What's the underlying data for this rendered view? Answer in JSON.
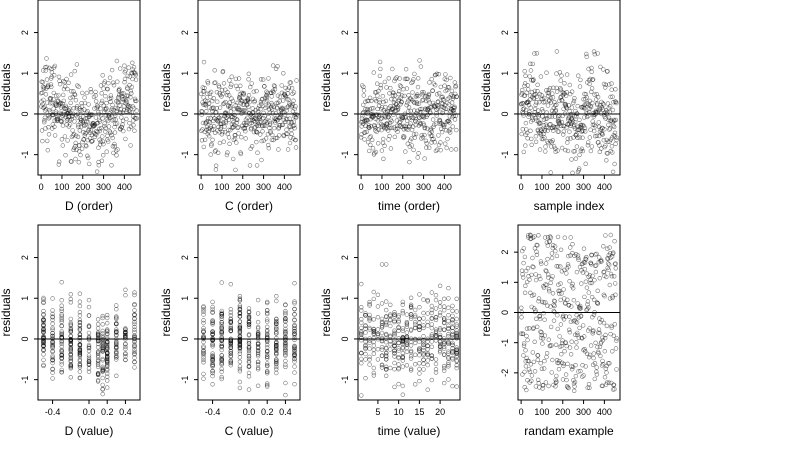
{
  "chart_data": [
    {
      "type": "scatter",
      "xlabel": "D (order)",
      "ylabel": "residuals",
      "xlim": [
        -15,
        475
      ],
      "ylim": [
        -1.5,
        2.8
      ],
      "xticks": [
        0,
        100,
        200,
        300,
        400
      ],
      "yticks": [
        -1,
        0,
        1,
        2
      ],
      "hline": 0,
      "n_points": 460,
      "x_kind": "index",
      "pattern": "d-order",
      "point_style": "open-circle"
    },
    {
      "type": "scatter",
      "xlabel": "C (order)",
      "ylabel": "residuals",
      "xlim": [
        -15,
        475
      ],
      "ylim": [
        -1.5,
        2.8
      ],
      "xticks": [
        0,
        100,
        200,
        300,
        400
      ],
      "yticks": [
        -1,
        0,
        1,
        2
      ],
      "hline": 0,
      "n_points": 460,
      "x_kind": "index",
      "pattern": "random",
      "point_style": "open-circle"
    },
    {
      "type": "scatter",
      "xlabel": "time (order)",
      "ylabel": "residuals",
      "xlim": [
        -15,
        475
      ],
      "ylim": [
        -1.5,
        2.8
      ],
      "xticks": [
        0,
        100,
        200,
        300,
        400
      ],
      "yticks": [
        -1,
        0,
        1,
        2
      ],
      "hline": 0,
      "n_points": 460,
      "x_kind": "index",
      "pattern": "random",
      "point_style": "open-circle"
    },
    {
      "type": "scatter",
      "xlabel": "sample index",
      "ylabel": "residuals",
      "xlim": [
        -15,
        475
      ],
      "ylim": [
        -1.5,
        2.8
      ],
      "xticks": [
        0,
        100,
        200,
        300,
        400
      ],
      "yticks": [
        -1,
        0,
        1,
        2
      ],
      "hline": 0,
      "n_points": 460,
      "x_kind": "index",
      "pattern": "sample-index",
      "point_style": "open-circle"
    },
    {
      "type": "scatter",
      "xlabel": "D (value)",
      "ylabel": "residuals",
      "xlim": [
        -0.56,
        0.56
      ],
      "ylim": [
        -1.5,
        2.8
      ],
      "xticks": [
        -0.4,
        0.0,
        0.2,
        0.4
      ],
      "xticklabels": [
        "-0.4",
        "0.0",
        "0.2",
        "0.4"
      ],
      "yticks": [
        -1,
        0,
        1,
        2
      ],
      "hline": 0,
      "n_points": 460,
      "x_kind": "discrete",
      "x_levels": [
        -0.5,
        -0.4,
        -0.3,
        -0.2,
        -0.1,
        0.0,
        0.1,
        0.15,
        0.2,
        0.3,
        0.4,
        0.5
      ],
      "pattern": "d-value",
      "point_style": "open-circle"
    },
    {
      "type": "scatter",
      "xlabel": "C (value)",
      "ylabel": "residuals",
      "xlim": [
        -0.56,
        0.56
      ],
      "ylim": [
        -1.5,
        2.8
      ],
      "xticks": [
        -0.4,
        0.0,
        0.2,
        0.4
      ],
      "xticklabels": [
        "-0.4",
        "0.0",
        "0.2",
        "0.4"
      ],
      "yticks": [
        -1,
        0,
        1,
        2
      ],
      "hline": 0,
      "n_points": 460,
      "x_kind": "discrete",
      "x_levels": [
        -0.5,
        -0.4,
        -0.3,
        -0.2,
        -0.1,
        0.0,
        0.1,
        0.2,
        0.3,
        0.4,
        0.5
      ],
      "pattern": "random",
      "point_style": "open-circle"
    },
    {
      "type": "scatter",
      "xlabel": "time (value)",
      "ylabel": "residuals",
      "xlim": [
        0.2,
        24.8
      ],
      "ylim": [
        -1.5,
        2.8
      ],
      "xticks": [
        5,
        10,
        15,
        20
      ],
      "yticks": [
        -1,
        0,
        1,
        2
      ],
      "hline": 0,
      "n_points": 460,
      "x_kind": "discrete",
      "x_levels": [
        1,
        2,
        3,
        4,
        5,
        6,
        7,
        8,
        9,
        10,
        11,
        12,
        13,
        14,
        15,
        16,
        17,
        18,
        19,
        20,
        21,
        22,
        23,
        24
      ],
      "pattern": "random",
      "point_style": "open-circle"
    },
    {
      "type": "scatter",
      "xlabel": "randam example",
      "ylabel": "residuals",
      "xlim": [
        -15,
        475
      ],
      "ylim": [
        -2.9,
        2.9
      ],
      "xticks": [
        0,
        100,
        200,
        300,
        400
      ],
      "yticks": [
        -2,
        -1,
        0,
        1,
        2
      ],
      "hline": 0,
      "n_points": 460,
      "x_kind": "index",
      "pattern": "wide-random",
      "point_style": "open-circle"
    }
  ]
}
